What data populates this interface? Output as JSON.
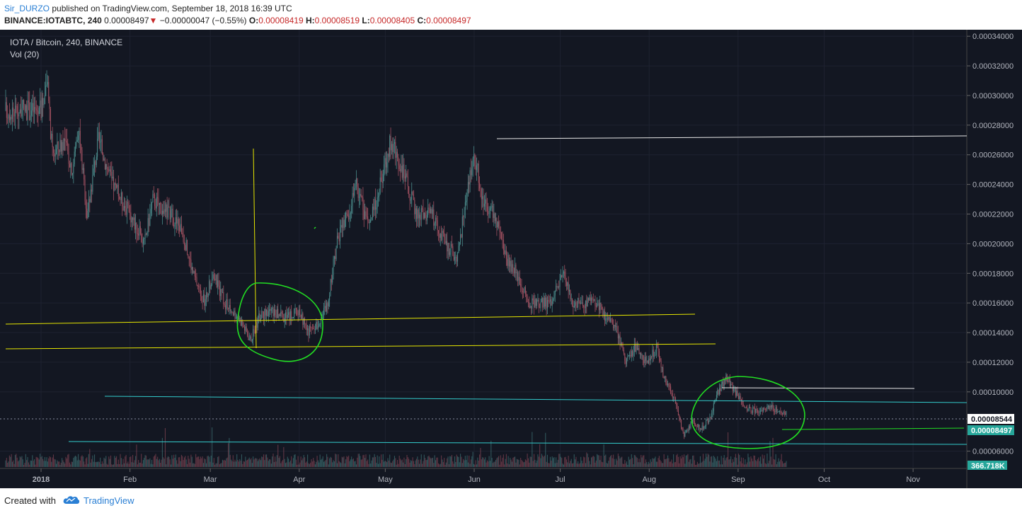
{
  "header": {
    "username": "Sir_DURZO",
    "published_text": "published on TradingView.com, September 18, 2018 16:39 UTC",
    "symbol": "BINANCE:IOTABTC, 240",
    "last": "0.00008497",
    "change_arrow": "▼",
    "change": "−0.00000047 (−0.55%)",
    "o_label": "O:",
    "o_value": "0.00008419",
    "h_label": "H:",
    "h_value": "0.00008519",
    "l_label": "L:",
    "l_value": "0.00008405",
    "c_label": "C:",
    "c_value": "0.00008497"
  },
  "chart_data": {
    "type": "candlestick",
    "title": "IOTA / Bitcoin, 240, BINANCE",
    "volume_label": "Vol (20)",
    "x_ticks": [
      "2018",
      "Feb",
      "Mar",
      "Apr",
      "May",
      "Jun",
      "Jul",
      "Aug",
      "Sep",
      "Oct",
      "Nov"
    ],
    "y_ticks": [
      "0.00034000",
      "0.00032000",
      "0.00030000",
      "0.00028000",
      "0.00026000",
      "0.00024000",
      "0.00022000",
      "0.00020000",
      "0.00018000",
      "0.00016000",
      "0.00014000",
      "0.00012000",
      "0.00010000",
      "0.00006000"
    ],
    "ylim": [
      5.55e-05,
      0.000342
    ],
    "price_path": [
      [
        "2018-01-01",
        0.00029
      ],
      [
        "2018-01-03",
        0.00031
      ],
      [
        "2018-01-05",
        0.00026
      ],
      [
        "2018-01-09",
        0.00027
      ],
      [
        "2018-01-12",
        0.00025
      ],
      [
        "2018-01-14",
        0.00028
      ],
      [
        "2018-01-17",
        0.00022
      ],
      [
        "2018-01-21",
        0.00027
      ],
      [
        "2018-01-26",
        0.00024
      ],
      [
        "2018-02-01",
        0.00022
      ],
      [
        "2018-02-06",
        0.0002
      ],
      [
        "2018-02-09",
        0.00023
      ],
      [
        "2018-02-15",
        0.00022
      ],
      [
        "2018-02-19",
        0.00021
      ],
      [
        "2018-02-23",
        0.00018
      ],
      [
        "2018-02-27",
        0.00016
      ],
      [
        "2018-03-02",
        0.00018
      ],
      [
        "2018-03-06",
        0.00016
      ],
      [
        "2018-03-11",
        0.00015
      ],
      [
        "2018-03-15",
        0.000135
      ],
      [
        "2018-03-18",
        0.00015
      ],
      [
        "2018-03-22",
        0.000155
      ],
      [
        "2018-03-27",
        0.00015
      ],
      [
        "2018-04-01",
        0.000155
      ],
      [
        "2018-04-04",
        0.00014
      ],
      [
        "2018-04-07",
        0.000145
      ],
      [
        "2018-04-11",
        0.00016
      ],
      [
        "2018-04-14",
        0.0002
      ],
      [
        "2018-04-18",
        0.00022
      ],
      [
        "2018-04-21",
        0.00024
      ],
      [
        "2018-04-25",
        0.00021
      ],
      [
        "2018-04-28",
        0.00023
      ],
      [
        "2018-05-03",
        0.00027
      ],
      [
        "2018-05-07",
        0.00025
      ],
      [
        "2018-05-12",
        0.00022
      ],
      [
        "2018-05-17",
        0.00022
      ],
      [
        "2018-05-22",
        0.0002
      ],
      [
        "2018-05-26",
        0.00019
      ],
      [
        "2018-05-30",
        0.00024
      ],
      [
        "2018-06-01",
        0.00026
      ],
      [
        "2018-06-04",
        0.00023
      ],
      [
        "2018-06-08",
        0.00022
      ],
      [
        "2018-06-12",
        0.00019
      ],
      [
        "2018-06-16",
        0.00018
      ],
      [
        "2018-06-20",
        0.00016
      ],
      [
        "2018-06-24",
        0.00016
      ],
      [
        "2018-06-28",
        0.00016
      ],
      [
        "2018-07-02",
        0.00018
      ],
      [
        "2018-07-05",
        0.00016
      ],
      [
        "2018-07-09",
        0.00016
      ],
      [
        "2018-07-14",
        0.00016
      ],
      [
        "2018-07-17",
        0.00015
      ],
      [
        "2018-07-21",
        0.00014
      ],
      [
        "2018-07-24",
        0.00012
      ],
      [
        "2018-07-27",
        0.00013
      ],
      [
        "2018-07-31",
        0.00012
      ],
      [
        "2018-08-04",
        0.00013
      ],
      [
        "2018-08-06",
        0.00011
      ],
      [
        "2018-08-10",
        9.5e-05
      ],
      [
        "2018-08-13",
        7e-05
      ],
      [
        "2018-08-16",
        8e-05
      ],
      [
        "2018-08-19",
        7.5e-05
      ],
      [
        "2018-08-22",
        8.2e-05
      ],
      [
        "2018-08-25",
        0.0001
      ],
      [
        "2018-08-28",
        0.00011
      ],
      [
        "2018-08-31",
        0.0001
      ],
      [
        "2018-09-04",
        8.8e-05
      ],
      [
        "2018-09-08",
        8.8e-05
      ],
      [
        "2018-09-12",
        9e-05
      ],
      [
        "2018-09-18",
        8.5e-05
      ]
    ],
    "current_price_label": "0.00008544",
    "last_price_label": "0.00008497",
    "volume_value_label": "366.718K",
    "colors": {
      "background": "#131722",
      "up": "#4a8a8a",
      "down": "#a05060",
      "yellow_lines": "#e6e600",
      "cyan_lines": "#33cccc",
      "white_lines": "#e8e8e8",
      "green_marks": "#22dd22",
      "price_label_bg": "#26a69a"
    }
  },
  "footer": {
    "created_with": "Created with",
    "brand": "TradingView"
  }
}
